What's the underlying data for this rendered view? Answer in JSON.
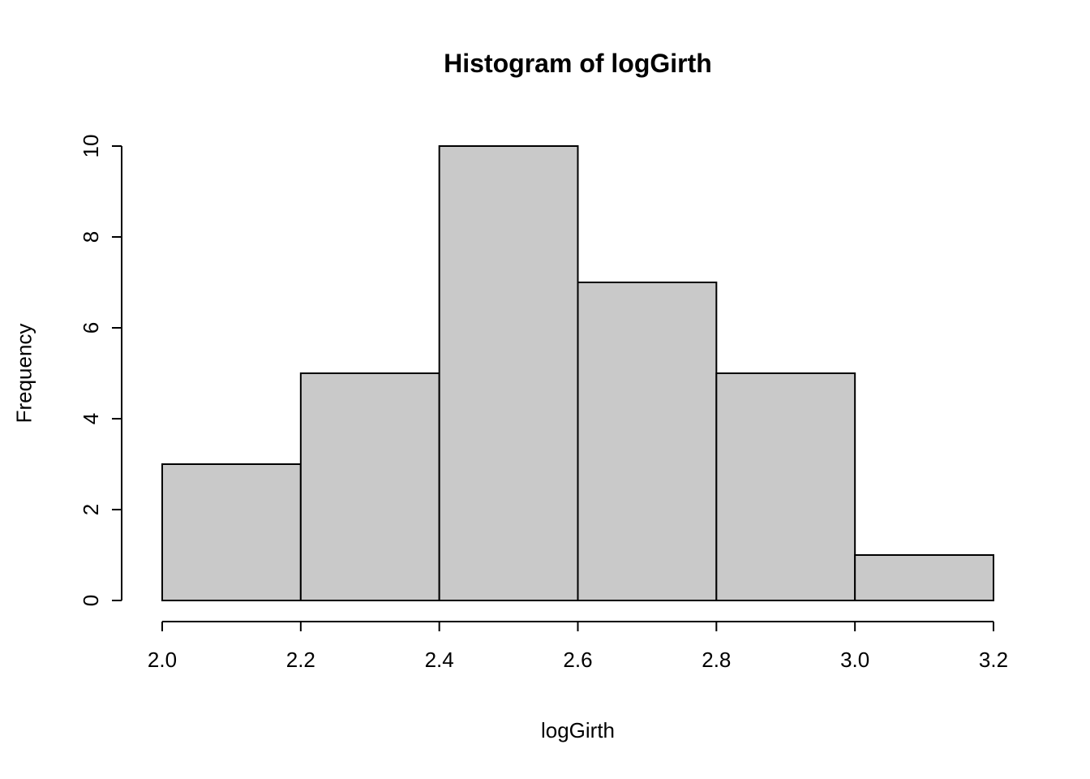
{
  "chart_data": {
    "type": "bar",
    "title": "Histogram of logGirth",
    "xlabel": "logGirth",
    "ylabel": "Frequency",
    "bins": [
      {
        "start": 2.0,
        "end": 2.2,
        "count": 3
      },
      {
        "start": 2.2,
        "end": 2.4,
        "count": 5
      },
      {
        "start": 2.4,
        "end": 2.6,
        "count": 10
      },
      {
        "start": 2.6,
        "end": 2.8,
        "count": 7
      },
      {
        "start": 2.8,
        "end": 3.0,
        "count": 5
      },
      {
        "start": 3.0,
        "end": 3.2,
        "count": 1
      }
    ],
    "values": [
      3,
      5,
      10,
      7,
      5,
      1
    ],
    "x_ticks": [
      "2.0",
      "2.2",
      "2.4",
      "2.6",
      "2.8",
      "3.0",
      "3.2"
    ],
    "y_ticks": [
      "0",
      "2",
      "4",
      "6",
      "8",
      "10"
    ],
    "xlim": [
      2.0,
      3.2
    ],
    "ylim": [
      0,
      10
    ],
    "grid": false,
    "bar_fill": "#c9c9c9",
    "bar_stroke": "#000000",
    "axis_color": "#000000"
  }
}
